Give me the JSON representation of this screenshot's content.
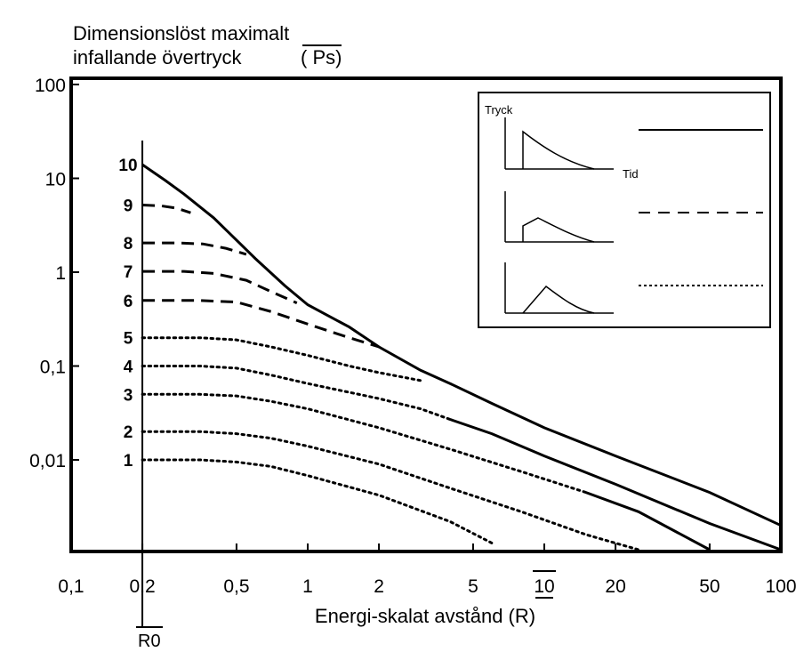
{
  "chart_data": {
    "type": "line",
    "title": "",
    "ylabel_lines": [
      "Dimensionslöst maximalt",
      "infallande övertryck"
    ],
    "ylabel_symbol": "( Ps)",
    "xlabel": "Energi-skalat avstånd (R)",
    "r0_label": "R0",
    "xscale": "log",
    "yscale": "log",
    "xlim": [
      0.09,
      100
    ],
    "ylim": [
      0.001,
      100
    ],
    "grid": false,
    "x_ticks": [
      {
        "value": 0.1,
        "label": "0,1"
      },
      {
        "value": 0.2,
        "label": "0,2"
      },
      {
        "value": 0.5,
        "label": "0,5"
      },
      {
        "value": 1,
        "label": "1"
      },
      {
        "value": 2,
        "label": "2"
      },
      {
        "value": 5,
        "label": "5"
      },
      {
        "value": 10,
        "label": "10"
      },
      {
        "value": 20,
        "label": "20"
      },
      {
        "value": 50,
        "label": "50"
      },
      {
        "value": 100,
        "label": "100"
      }
    ],
    "y_ticks": [
      {
        "value": 100,
        "label": "100"
      },
      {
        "value": 10,
        "label": "10"
      },
      {
        "value": 1,
        "label": "1"
      },
      {
        "value": 0.1,
        "label": "0,1"
      },
      {
        "value": 0.01,
        "label": "0,01"
      }
    ],
    "r0_value": 0.2,
    "legend": {
      "placement": "top-right",
      "y_axis_label": "Tryck",
      "x_axis_label": "Tid"
    },
    "series": [
      {
        "label": "10",
        "style": "solid",
        "segments": [
          {
            "style": "solid",
            "points": [
              [
                0.2,
                14
              ],
              [
                0.25,
                9.5
              ],
              [
                0.3,
                6.8
              ],
              [
                0.4,
                3.8
              ],
              [
                0.5,
                2.2
              ],
              [
                0.6,
                1.4
              ],
              [
                0.8,
                0.72
              ],
              [
                1,
                0.45
              ],
              [
                1.5,
                0.26
              ],
              [
                2,
                0.16
              ],
              [
                3,
                0.09
              ],
              [
                4,
                0.065
              ],
              [
                6,
                0.04
              ],
              [
                10,
                0.022
              ],
              [
                20,
                0.011
              ],
              [
                50,
                0.0045
              ],
              [
                100,
                0.002
              ]
            ]
          }
        ]
      },
      {
        "label": "9",
        "style": "dashed",
        "segments": [
          {
            "style": "dashed",
            "points": [
              [
                0.2,
                5.2
              ],
              [
                0.24,
                5.1
              ],
              [
                0.28,
                4.8
              ],
              [
                0.32,
                4.3
              ]
            ]
          }
        ]
      },
      {
        "label": "8",
        "style": "dashed",
        "segments": [
          {
            "style": "dashed",
            "points": [
              [
                0.2,
                2.05
              ],
              [
                0.28,
                2.05
              ],
              [
                0.36,
                2
              ],
              [
                0.45,
                1.8
              ],
              [
                0.55,
                1.55
              ]
            ]
          }
        ]
      },
      {
        "label": "7",
        "style": "dashed",
        "segments": [
          {
            "style": "dashed",
            "points": [
              [
                0.2,
                1.02
              ],
              [
                0.3,
                1.02
              ],
              [
                0.4,
                0.97
              ],
              [
                0.55,
                0.82
              ],
              [
                0.7,
                0.62
              ],
              [
                0.9,
                0.47
              ]
            ]
          }
        ]
      },
      {
        "label": "6",
        "style": "dashed",
        "segments": [
          {
            "style": "dashed",
            "points": [
              [
                0.2,
                0.5
              ],
              [
                0.35,
                0.5
              ],
              [
                0.5,
                0.48
              ],
              [
                0.7,
                0.38
              ],
              [
                1,
                0.28
              ],
              [
                1.5,
                0.2
              ],
              [
                2,
                0.16
              ]
            ]
          }
        ]
      },
      {
        "label": "5",
        "style": "dotted",
        "segments": [
          {
            "style": "dotted",
            "points": [
              [
                0.2,
                0.2
              ],
              [
                0.35,
                0.2
              ],
              [
                0.5,
                0.19
              ],
              [
                0.7,
                0.16
              ],
              [
                1,
                0.13
              ],
              [
                1.5,
                0.1
              ],
              [
                2,
                0.085
              ],
              [
                3,
                0.07
              ]
            ]
          }
        ]
      },
      {
        "label": "4",
        "style": "dotted",
        "segments": [
          {
            "style": "dotted",
            "points": [
              [
                0.2,
                0.1
              ],
              [
                0.35,
                0.1
              ],
              [
                0.5,
                0.095
              ],
              [
                0.7,
                0.08
              ],
              [
                1,
                0.065
              ],
              [
                2,
                0.045
              ],
              [
                3,
                0.035
              ],
              [
                4,
                0.027
              ]
            ]
          },
          {
            "style": "solid",
            "points": [
              [
                4,
                0.027
              ],
              [
                6,
                0.019
              ],
              [
                10,
                0.011
              ],
              [
                20,
                0.0055
              ],
              [
                50,
                0.0021
              ],
              [
                100,
                0.0011
              ]
            ]
          }
        ]
      },
      {
        "label": "3",
        "style": "dotted",
        "segments": [
          {
            "style": "dotted",
            "points": [
              [
                0.2,
                0.05
              ],
              [
                0.35,
                0.05
              ],
              [
                0.5,
                0.048
              ],
              [
                0.7,
                0.042
              ],
              [
                1,
                0.035
              ],
              [
                2,
                0.022
              ],
              [
                4,
                0.013
              ],
              [
                8,
                0.0075
              ],
              [
                15,
                0.0045
              ]
            ]
          },
          {
            "style": "solid",
            "points": [
              [
                15,
                0.0045
              ],
              [
                25,
                0.0028
              ],
              [
                50,
                0.0011
              ]
            ]
          }
        ]
      },
      {
        "label": "2",
        "style": "dotted",
        "segments": [
          {
            "style": "dotted",
            "points": [
              [
                0.2,
                0.02
              ],
              [
                0.35,
                0.02
              ],
              [
                0.5,
                0.019
              ],
              [
                0.7,
                0.017
              ],
              [
                1,
                0.014
              ],
              [
                2,
                0.009
              ],
              [
                4,
                0.005
              ],
              [
                8,
                0.0028
              ],
              [
                15,
                0.0016
              ],
              [
                25,
                0.0011
              ]
            ]
          }
        ]
      },
      {
        "label": "1",
        "style": "dotted",
        "segments": [
          {
            "style": "dotted",
            "points": [
              [
                0.2,
                0.01
              ],
              [
                0.35,
                0.01
              ],
              [
                0.5,
                0.0095
              ],
              [
                0.7,
                0.0085
              ],
              [
                1,
                0.0068
              ],
              [
                2,
                0.0042
              ],
              [
                4,
                0.0022
              ],
              [
                6,
                0.0013
              ]
            ]
          }
        ]
      }
    ]
  }
}
